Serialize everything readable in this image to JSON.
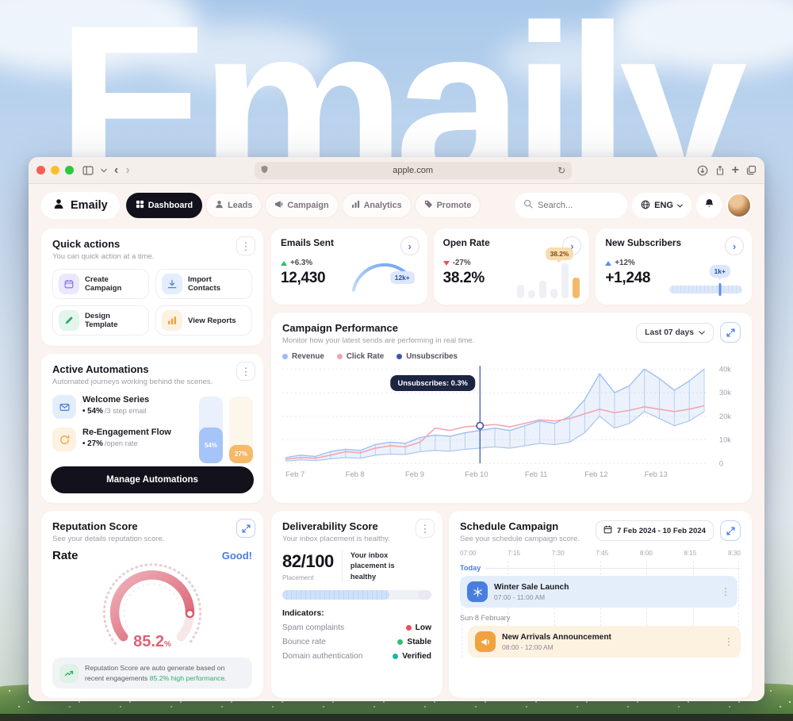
{
  "watermark": "Emaily",
  "browser": {
    "url": "apple.com"
  },
  "icons": {
    "kebab": "⋮",
    "back": "‹",
    "forward": "›",
    "refresh": "↻",
    "chevron_right": "›",
    "plus": "+",
    "bullet": "•"
  },
  "header": {
    "brand": "Emaily",
    "nav": [
      {
        "label": "Dashboard",
        "active": true
      },
      {
        "label": "Leads",
        "active": false
      },
      {
        "label": "Campaign",
        "active": false
      },
      {
        "label": "Analytics",
        "active": false
      },
      {
        "label": "Promote",
        "active": false
      }
    ],
    "search_placeholder": "Search...",
    "language": "ENG"
  },
  "quick_actions": {
    "title": "Quick actions",
    "subtitle": "You can quick action at a time.",
    "actions": [
      {
        "label": "Create Campaign"
      },
      {
        "label": "Import Contacts"
      },
      {
        "label": "Design Template"
      },
      {
        "label": "View Reports"
      }
    ]
  },
  "automations": {
    "title": "Active Automations",
    "subtitle": "Automated journeys working behind the scenes.",
    "items": [
      {
        "name": "Welcome Series",
        "percent": "54%",
        "detail": "/3 step email"
      },
      {
        "name": "Re-Engagement Flow",
        "percent": "27%",
        "detail": "/open rate"
      }
    ],
    "bar_labels": [
      "54%",
      "27%"
    ],
    "button_label": "Manage Automations"
  },
  "stats": [
    {
      "title": "Emails Sent",
      "delta": "+6.3%",
      "value": "12,430",
      "badge": "12k+"
    },
    {
      "title": "Open Rate",
      "delta": "-27%",
      "value": "38.2%",
      "badge": "38.2%"
    },
    {
      "title": "New Subscribers",
      "delta": "+12%",
      "value": "+1,248",
      "badge": "1k+"
    }
  ],
  "campaign": {
    "title": "Campaign Performance",
    "subtitle": "Monitor how your latest sends are performing in real time.",
    "range_label": "Last 07 days",
    "legend": [
      {
        "label": "Revenue"
      },
      {
        "label": "Click Rate"
      },
      {
        "label": "Unsubscribes"
      }
    ],
    "tooltip": "Unsubscribes: 0.3%"
  },
  "reputation": {
    "title": "Reputation Score",
    "subtitle": "See your details reputation score.",
    "rate_label": "Rate",
    "status": "Good!",
    "value": "85.2",
    "unit": "%",
    "note": "Reputation Score are auto generate based on recent engagements ",
    "note_highlight": "85.2% high performance."
  },
  "deliverability": {
    "title": "Deliverability Score",
    "subtitle": "Your inbox placement is healthy.",
    "score": "82/100",
    "score_label": "Placement",
    "side_note": "Your inbox placement is healthy",
    "indicators_label": "Indicators:",
    "indicators": [
      {
        "label": "Spam complaints",
        "status": "Low",
        "color": "#e8505b"
      },
      {
        "label": "Bounce rate",
        "status": "Stable",
        "color": "#2fbf71"
      },
      {
        "label": "Domain authentication",
        "status": "Verified",
        "color": "#18b8a6"
      }
    ]
  },
  "schedule": {
    "title": "Schedule Campaign",
    "subtitle": "See your schedule campaign score.",
    "date_range": "7 Feb 2024 - 10 Feb 2024",
    "times": [
      "07:00",
      "7:15",
      "7:30",
      "7:45",
      "8:00",
      "8:15",
      "8:30"
    ],
    "today_label": "Today",
    "events": [
      {
        "name": "Winter Sale Launch",
        "time": "07:00 - 11:00 AM"
      },
      {
        "name": "New Arrivals Announcement",
        "time": "08:00 - 12:00 AM"
      }
    ],
    "day_label": "Sun 8 February"
  },
  "chart_data": [
    {
      "id": "campaign-performance",
      "type": "area",
      "title": "Campaign Performance",
      "x_ticks": [
        "Feb 7",
        "Feb 8",
        "Feb 9",
        "Feb 10",
        "Feb 11",
        "Feb 12",
        "Feb 13"
      ],
      "y_ticks": [
        "0",
        "10k",
        "20k",
        "30k",
        "40k"
      ],
      "ylim": [
        0,
        40
      ],
      "unit": "k",
      "legend_position": "top-left",
      "grid": true,
      "annotation": {
        "label": "Unsubscribes: 0.3%",
        "x_index": 13
      },
      "series": [
        {
          "name": "Revenue",
          "color": "#9cbdf2",
          "values": [
            2.5,
            3.5,
            3,
            5,
            6,
            5.5,
            8,
            9,
            8.5,
            11,
            12,
            11.5,
            13,
            14,
            15,
            14,
            16,
            18,
            17,
            20,
            27,
            38,
            30,
            33,
            40,
            36,
            31,
            35,
            40
          ]
        },
        {
          "name": "Click Rate",
          "color": "#f2a4b0",
          "values": [
            1.8,
            2.5,
            2.2,
            3.5,
            5,
            4.5,
            6.5,
            7.5,
            7,
            9,
            15,
            14,
            15.5,
            16,
            16.5,
            15.5,
            17,
            18.5,
            18,
            19,
            21,
            23,
            21.5,
            22.5,
            24,
            23,
            22,
            23,
            24.5
          ]
        },
        {
          "name": "Unsubscribes",
          "color": "#3d56b0",
          "values": [
            1,
            1.5,
            1.2,
            2,
            2.5,
            2.2,
            3.5,
            4,
            3.8,
            5,
            5.5,
            5.2,
            6,
            6.5,
            7,
            6.5,
            7.5,
            8.5,
            8,
            9,
            13,
            20,
            15,
            17,
            22,
            19,
            16,
            18,
            22
          ]
        }
      ]
    },
    {
      "id": "emails-sent-arc",
      "type": "gauge",
      "value": 12430,
      "max": 15000,
      "label": "12k+"
    },
    {
      "id": "open-rate-bars",
      "type": "bar",
      "values": [
        30,
        18,
        40,
        22,
        78,
        46
      ],
      "highlight_index": 5,
      "highlight_label": "38.2%"
    },
    {
      "id": "subscribers-meter",
      "type": "bar",
      "value": 1248,
      "max": 1800,
      "label": "1k+"
    },
    {
      "id": "automation-bars",
      "type": "bar",
      "values": [
        54,
        27
      ]
    },
    {
      "id": "reputation-gauge",
      "type": "gauge",
      "value": 85.2,
      "max": 100,
      "label": "85.2%"
    },
    {
      "id": "deliverability-bar",
      "type": "bar",
      "value": 82,
      "max": 100
    }
  ]
}
